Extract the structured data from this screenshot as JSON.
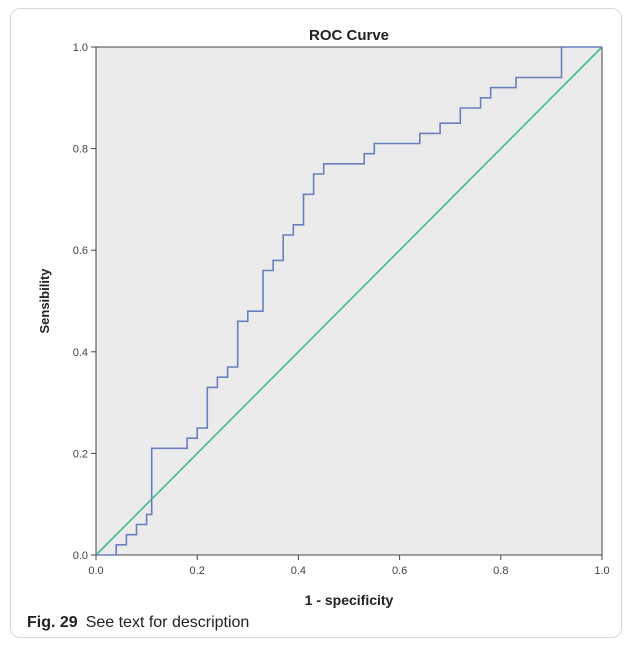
{
  "caption": {
    "label": "Fig. 29",
    "text": "See text for description"
  },
  "chart_data": {
    "type": "line",
    "title": "ROC Curve",
    "xlabel": "1 - specificity",
    "ylabel": "Sensibility",
    "xlim": [
      0,
      1
    ],
    "ylim": [
      0,
      1
    ],
    "xticks": [
      "0.0",
      "0.2",
      "0.4",
      "0.6",
      "0.8",
      "1.0"
    ],
    "yticks": [
      "0.0",
      "0.2",
      "0.4",
      "0.6",
      "0.8",
      "1.0"
    ],
    "grid": false,
    "colors": {
      "plot_bg": "#ebebeb",
      "roc": "#6b7fbf",
      "reference": "#3fbf86",
      "axis": "#444444"
    },
    "series": [
      {
        "values": [
          [
            0.0,
            0.0
          ],
          [
            0.04,
            0.0
          ],
          [
            0.04,
            0.02
          ],
          [
            0.06,
            0.02
          ],
          [
            0.06,
            0.04
          ],
          [
            0.08,
            0.04
          ],
          [
            0.08,
            0.06
          ],
          [
            0.1,
            0.06
          ],
          [
            0.1,
            0.08
          ],
          [
            0.11,
            0.08
          ],
          [
            0.11,
            0.21
          ],
          [
            0.18,
            0.21
          ],
          [
            0.18,
            0.23
          ],
          [
            0.2,
            0.23
          ],
          [
            0.2,
            0.25
          ],
          [
            0.22,
            0.25
          ],
          [
            0.22,
            0.33
          ],
          [
            0.24,
            0.33
          ],
          [
            0.24,
            0.35
          ],
          [
            0.26,
            0.35
          ],
          [
            0.26,
            0.37
          ],
          [
            0.28,
            0.37
          ],
          [
            0.28,
            0.46
          ],
          [
            0.3,
            0.46
          ],
          [
            0.3,
            0.48
          ],
          [
            0.33,
            0.48
          ],
          [
            0.33,
            0.56
          ],
          [
            0.35,
            0.56
          ],
          [
            0.35,
            0.58
          ],
          [
            0.37,
            0.58
          ],
          [
            0.37,
            0.63
          ],
          [
            0.39,
            0.63
          ],
          [
            0.39,
            0.65
          ],
          [
            0.41,
            0.65
          ],
          [
            0.41,
            0.71
          ],
          [
            0.43,
            0.71
          ],
          [
            0.43,
            0.75
          ],
          [
            0.45,
            0.75
          ],
          [
            0.45,
            0.77
          ],
          [
            0.53,
            0.77
          ],
          [
            0.53,
            0.79
          ],
          [
            0.55,
            0.79
          ],
          [
            0.55,
            0.81
          ],
          [
            0.64,
            0.81
          ],
          [
            0.64,
            0.83
          ],
          [
            0.68,
            0.83
          ],
          [
            0.68,
            0.85
          ],
          [
            0.72,
            0.85
          ],
          [
            0.72,
            0.88
          ],
          [
            0.76,
            0.88
          ],
          [
            0.76,
            0.9
          ],
          [
            0.78,
            0.9
          ],
          [
            0.78,
            0.92
          ],
          [
            0.83,
            0.92
          ],
          [
            0.83,
            0.94
          ],
          [
            0.92,
            0.94
          ],
          [
            0.92,
            1.0
          ],
          [
            1.0,
            1.0
          ]
        ]
      },
      {
        "values": [
          [
            0,
            0
          ],
          [
            1,
            1
          ]
        ]
      }
    ]
  }
}
